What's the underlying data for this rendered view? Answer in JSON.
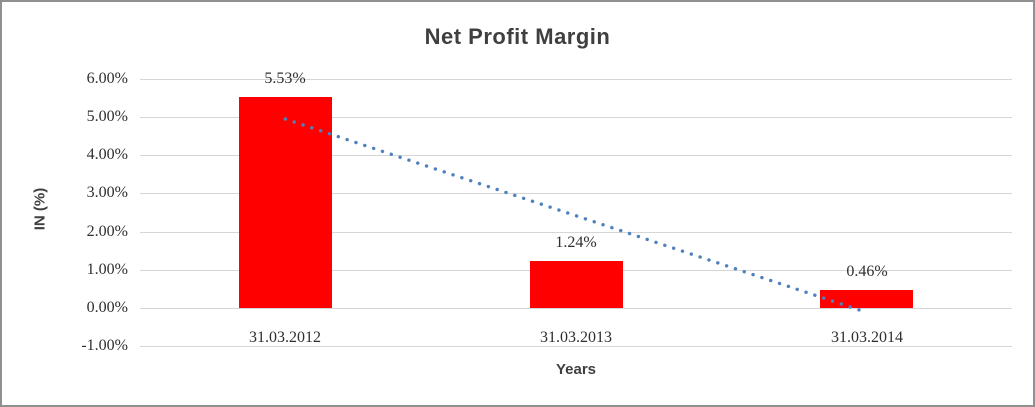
{
  "chart_data": {
    "type": "bar",
    "title": "Net Profit Margin",
    "xlabel": "Years",
    "ylabel": "IN (%)",
    "categories": [
      "31.03.2012",
      "31.03.2013",
      "31.03.2014"
    ],
    "values": [
      5.53,
      1.24,
      0.46
    ],
    "data_labels": [
      "5.53%",
      "1.24%",
      "0.46%"
    ],
    "ytick_values": [
      6,
      5,
      4,
      3,
      2,
      1,
      0,
      -1
    ],
    "ytick_labels": [
      "6.00%",
      "5.00%",
      "4.00%",
      "3.00%",
      "2.00%",
      "1.00%",
      "0.00%",
      "-1.00%"
    ],
    "ylim": [
      -1,
      6
    ],
    "grid": true,
    "legend": "none",
    "bar_color": "#FF0000",
    "gridline_color": "#D6D6D6",
    "text_color": "#2E2E2E",
    "title_color": "#3F3F3F",
    "trendline": {
      "type": "linear",
      "style": "dotted",
      "color": "#4F81BD",
      "start_value": 4.95,
      "end_value": -0.12
    }
  }
}
